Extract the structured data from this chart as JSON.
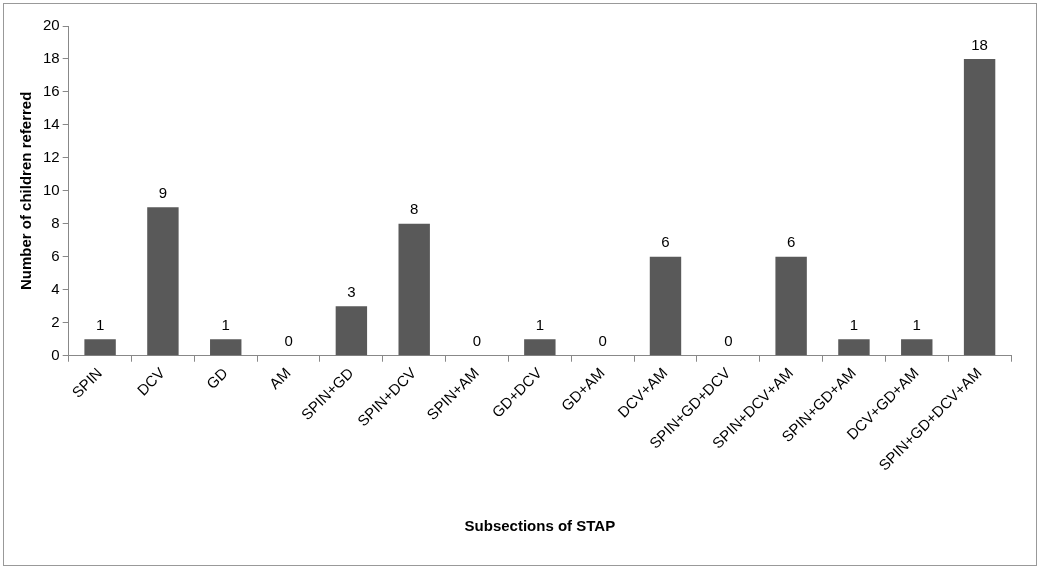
{
  "chart_data": {
    "type": "bar",
    "xlabel": "Subsections of STAP",
    "ylabel": "Number of children referred",
    "categories": [
      "SPIN",
      "DCV",
      "GD",
      "AM",
      "SPIN+GD",
      "SPIN+DCV",
      "SPIN+AM",
      "GD+DCV",
      "GD+AM",
      "DCV+AM",
      "SPIN+GD+DCV",
      "SPIN+DCV+AM",
      "SPIN+GD+AM",
      "DCV+GD+AM",
      "SPIN+GD+DCV+AM"
    ],
    "values": [
      1,
      9,
      1,
      0,
      3,
      8,
      0,
      1,
      0,
      6,
      0,
      6,
      1,
      1,
      18
    ],
    "color": "#595959",
    "ylim": [
      0,
      20
    ],
    "yticks": [
      0,
      2,
      4,
      6,
      8,
      10,
      12,
      14,
      16,
      18,
      20
    ],
    "grid": false,
    "legend": false,
    "data_labels": true
  }
}
